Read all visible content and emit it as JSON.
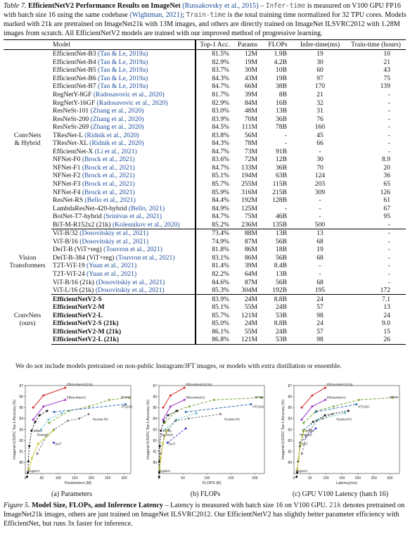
{
  "table_caption": {
    "prefix": "Table 7.",
    "title": "EfficientNetV2 Performance Results on ImageNet",
    "cite1": "(Russakovsky et al., 2015)",
    "dash": " – ",
    "mono1": "Infer-time",
    "text1": " is measured on V100 GPU FP16 with batch size 16 using the same codebase ",
    "cite2": "(Wightman, 2021)",
    "text2": "; ",
    "mono2": "Train-time",
    "text3": " is the total training time normalized for 32 TPU cores. Models marked with 21k are pretrained on ImageNet21k with 13M images, and others are directly trained on ImageNet ILSVRC2012 with 1.28M images from scratch. All EfficientNetV2 models are trained with our improved method of progressive learning."
  },
  "table": {
    "headers": [
      "Model",
      "Top-1 Acc.",
      "Params",
      "FLOPs",
      "Infer-time(ms)",
      "Train-time (hours)"
    ],
    "groups": [
      {
        "label": [
          "ConvNets",
          "& Hybrid"
        ],
        "rows": [
          {
            "model": "EfficientNet-B3",
            "cite": "(Tan & Le, 2019a)",
            "acc": "81.5%",
            "params": "12M",
            "flops": "1.9B",
            "infer": "19",
            "train": "10"
          },
          {
            "model": "EfficientNet-B4",
            "cite": "(Tan & Le, 2019a)",
            "acc": "82.9%",
            "params": "19M",
            "flops": "4.2B",
            "infer": "30",
            "train": "21"
          },
          {
            "model": "EfficientNet-B5",
            "cite": "(Tan & Le, 2019a)",
            "acc": "83.7%",
            "params": "30M",
            "flops": "10B",
            "infer": "60",
            "train": "43"
          },
          {
            "model": "EfficientNet-B6",
            "cite": "(Tan & Le, 2019a)",
            "acc": "84.3%",
            "params": "43M",
            "flops": "19B",
            "infer": "97",
            "train": "75"
          },
          {
            "model": "EfficientNet-B7",
            "cite": "(Tan & Le, 2019a)",
            "acc": "84.7%",
            "params": "66M",
            "flops": "38B",
            "infer": "170",
            "train": "139"
          },
          {
            "model": "RegNetY-8GF",
            "cite": "(Radosavovic et al., 2020)",
            "acc": "81.7%",
            "params": "39M",
            "flops": "8B",
            "infer": "21",
            "train": "-"
          },
          {
            "model": "RegNetY-16GF",
            "cite": "(Radosavovic et al., 2020)",
            "acc": "82.9%",
            "params": "84M",
            "flops": "16B",
            "infer": "32",
            "train": "-"
          },
          {
            "model": "ResNeSt-101",
            "cite": "(Zhang et al., 2020)",
            "acc": "83.0%",
            "params": "48M",
            "flops": "13B",
            "infer": "31",
            "train": "-"
          },
          {
            "model": "ResNeSt-200",
            "cite": "(Zhang et al., 2020)",
            "acc": "83.9%",
            "params": "70M",
            "flops": "36B",
            "infer": "76",
            "train": "-"
          },
          {
            "model": "ResNeSt-269",
            "cite": "(Zhang et al., 2020)",
            "acc": "84.5%",
            "params": "111M",
            "flops": "78B",
            "infer": "160",
            "train": "-"
          },
          {
            "model": "TResNet-L",
            "cite": "(Ridnik et al., 2020)",
            "acc": "83.8%",
            "params": "56M",
            "flops": "-",
            "infer": "45",
            "train": "-"
          },
          {
            "model": "TResNet-XL",
            "cite": "(Ridnik et al., 2020)",
            "acc": "84.3%",
            "params": "78M",
            "flops": "-",
            "infer": "66",
            "train": "-"
          },
          {
            "model": "EfficientNet-X",
            "cite": "(Li et al., 2021)",
            "acc": "84.7%",
            "params": "73M",
            "flops": "91B",
            "infer": "-",
            "train": "-"
          },
          {
            "model": "NFNet-F0",
            "cite": "(Brock et al., 2021)",
            "acc": "83.6%",
            "params": "72M",
            "flops": "12B",
            "infer": "30",
            "train": "8.9"
          },
          {
            "model": "NFNet-F1",
            "cite": "(Brock et al., 2021)",
            "acc": "84.7%",
            "params": "133M",
            "flops": "36B",
            "infer": "70",
            "train": "20"
          },
          {
            "model": "NFNet-F2",
            "cite": "(Brock et al., 2021)",
            "acc": "85.1%",
            "params": "194M",
            "flops": "63B",
            "infer": "124",
            "train": "36"
          },
          {
            "model": "NFNet-F3",
            "cite": "(Brock et al., 2021)",
            "acc": "85.7%",
            "params": "255M",
            "flops": "115B",
            "infer": "203",
            "train": "65"
          },
          {
            "model": "NFNet-F4",
            "cite": "(Brock et al., 2021)",
            "acc": "85.9%",
            "params": "316M",
            "flops": "215B",
            "infer": "309",
            "train": "126"
          },
          {
            "model": "ResNet-RS",
            "cite": "(Bello et al., 2021)",
            "acc": "84.4%",
            "params": "192M",
            "flops": "128B",
            "infer": "-",
            "train": "61"
          },
          {
            "model": "LambdaResNet-420-hybrid",
            "cite": "(Bello, 2021)",
            "acc": "84.9%",
            "params": "125M",
            "flops": "-",
            "infer": "-",
            "train": "67"
          },
          {
            "model": "BotNet-T7-hybrid",
            "cite": "(Srinivas et al., 2021)",
            "acc": "84.7%",
            "params": "75M",
            "flops": "46B",
            "infer": "-",
            "train": "95"
          },
          {
            "model": "BiT-M-R152x2 (21k)",
            "cite": "(Kolesnikov et al., 2020)",
            "acc": "85.2%",
            "params": "236M",
            "flops": "135B",
            "infer": "500",
            "train": "-"
          }
        ]
      },
      {
        "label": [
          "Vision",
          "Transformers"
        ],
        "rows": [
          {
            "model": "ViT-B/32",
            "cite": "(Dosovitskiy et al., 2021)",
            "acc": "73.4%",
            "params": "88M",
            "flops": "13B",
            "infer": "13",
            "train": "-"
          },
          {
            "model": "ViT-B/16",
            "cite": "(Dosovitskiy et al., 2021)",
            "acc": "74.9%",
            "params": "87M",
            "flops": "56B",
            "infer": "68",
            "train": "-"
          },
          {
            "model": "DeiT-B (ViT+reg)",
            "cite": "(Touvron et al., 2021)",
            "acc": "81.8%",
            "params": "86M",
            "flops": "18B",
            "infer": "19",
            "train": "-"
          },
          {
            "model": "DeiT-B-384 (ViT+reg)",
            "cite": "(Touvron et al., 2021)",
            "acc": "83.1%",
            "params": "86M",
            "flops": "56B",
            "infer": "68",
            "train": "-"
          },
          {
            "model": "T2T-ViT-19",
            "cite": "(Yuan et al., 2021)",
            "acc": "81.4%",
            "params": "39M",
            "flops": "8.4B",
            "infer": "-",
            "train": "-"
          },
          {
            "model": "T2T-ViT-24",
            "cite": "(Yuan et al., 2021)",
            "acc": "82.2%",
            "params": "64M",
            "flops": "13B",
            "infer": "-",
            "train": "-"
          },
          {
            "model": "ViT-B/16 (21k)",
            "cite": "(Dosovitskiy et al., 2021)",
            "acc": "84.6%",
            "params": "87M",
            "flops": "56B",
            "infer": "68",
            "train": "-"
          },
          {
            "model": "ViT-L/16 (21k)",
            "cite": "(Dosovitskiy et al., 2021)",
            "acc": "85.3%",
            "params": "304M",
            "flops": "192B",
            "infer": "195",
            "train": "172"
          }
        ]
      },
      {
        "label": [
          "ConvNets",
          "(ours)"
        ],
        "rows": [
          {
            "model": "EfficientNetV2-S",
            "cite": "",
            "acc": "83.9%",
            "params": "24M",
            "flops": "8.8B",
            "infer": "24",
            "train": "7.1"
          },
          {
            "model": "EfficientNetV2-M",
            "cite": "",
            "acc": "85.1%",
            "params": "55M",
            "flops": "24B",
            "infer": "57",
            "train": "13"
          },
          {
            "model": "EfficientNetV2-L",
            "cite": "",
            "acc": "85.7%",
            "params": "121M",
            "flops": "53B",
            "infer": "98",
            "train": "24"
          },
          {
            "model": "EfficientNetV2-S (21k)",
            "cite": "",
            "acc": "85.0%",
            "params": "24M",
            "flops": "8.8B",
            "infer": "24",
            "train": "9.0"
          },
          {
            "model": "EfficientNetV2-M (21k)",
            "cite": "",
            "acc": "86.1%",
            "params": "55M",
            "flops": "24B",
            "infer": "57",
            "train": "15"
          },
          {
            "model": "EfficientNetV2-L (21k)",
            "cite": "",
            "acc": "86.8%",
            "params": "121M",
            "flops": "53B",
            "infer": "98",
            "train": "26"
          }
        ]
      }
    ],
    "footnote": "We do not include models pretrained on non-public Instagram/JFT images, or models with extra distillation or ensemble."
  },
  "colors": {
    "EfficientNetV2 (21k)": "#d62728",
    "EfficientNetV2": "#9b30c8",
    "NFNet": "#7aab3c",
    "ViT (21k)": "#2f6fb5",
    "EffNet": "#111111",
    "ResNeSt": "#57b7c9",
    "ResNet-RS": "#777777",
    "DeiT": "#3a3ad0",
    "RegNetY": "#c8c83a"
  },
  "chart_data": [
    {
      "type": "line",
      "subcaption": "(a) Parameters",
      "xlabel": "Parameters (M)",
      "ylabel": "Imagenet ILSVRC Top-1 Accuracy (%)",
      "xlim": [
        0,
        320
      ],
      "ylim": [
        79,
        87
      ],
      "xticks": [
        "0",
        "50",
        "100",
        "150",
        "200",
        "250",
        "300"
      ],
      "yticks": [
        "80",
        "81",
        "82",
        "83",
        "84",
        "85",
        "86",
        "87"
      ],
      "series": [
        {
          "name": "EfficientNetV2(21k)",
          "x": [
            24,
            55,
            121
          ],
          "y": [
            85.0,
            86.1,
            86.8
          ]
        },
        {
          "name": "EfficientNetV2",
          "x": [
            24,
            55,
            121
          ],
          "y": [
            83.9,
            85.1,
            85.7
          ]
        },
        {
          "name": "NFNet",
          "x": [
            72,
            133,
            194,
            255,
            316
          ],
          "y": [
            83.6,
            84.7,
            85.1,
            85.7,
            85.9
          ]
        },
        {
          "name": "ViT(21k)",
          "x": [
            87,
            304
          ],
          "y": [
            84.6,
            85.3
          ]
        },
        {
          "name": "EffNet",
          "x": [
            5.3,
            7.8,
            9.2,
            12,
            19,
            30,
            43,
            66
          ],
          "y": [
            77.1,
            79.1,
            80.1,
            81.5,
            82.9,
            83.7,
            84.3,
            84.7
          ]
        },
        {
          "name": "ResNeSt",
          "x": [
            48,
            70,
            111
          ],
          "y": [
            83.0,
            83.9,
            84.5
          ]
        },
        {
          "name": "ResNet-RS",
          "x": [
            36,
            64,
            87,
            129,
            164,
            192
          ],
          "y": [
            80.8,
            82.4,
            83.0,
            83.8,
            84.0,
            84.4
          ]
        },
        {
          "name": "DeiT",
          "x": [
            86
          ],
          "y": [
            81.8
          ]
        },
        {
          "name": "RegNetY",
          "x": [
            11,
            20,
            39,
            84
          ],
          "y": [
            79.4,
            80.4,
            81.7,
            82.9
          ]
        }
      ]
    },
    {
      "type": "line",
      "subcaption": "(b) FLOPs",
      "xlabel": "FLOPS (B)",
      "ylabel": "Imagenet ILSVRC Top-1 Accuracy (%)",
      "xlim": [
        0,
        220
      ],
      "ylim": [
        79,
        87
      ],
      "xticks": [
        "0",
        "50",
        "100",
        "150",
        "200"
      ],
      "yticks": [
        "80",
        "81",
        "82",
        "83",
        "84",
        "85",
        "86",
        "87"
      ],
      "series": [
        {
          "name": "EfficientNetV2(21k)",
          "x": [
            8.8,
            24,
            53
          ],
          "y": [
            85.0,
            86.1,
            86.8
          ]
        },
        {
          "name": "EfficientNetV2",
          "x": [
            8.8,
            24,
            53
          ],
          "y": [
            83.9,
            85.1,
            85.7
          ]
        },
        {
          "name": "NFNet",
          "x": [
            12,
            36,
            63,
            115,
            215
          ],
          "y": [
            83.6,
            84.7,
            85.1,
            85.7,
            85.9
          ]
        },
        {
          "name": "ViT(21k)",
          "x": [
            56,
            192
          ],
          "y": [
            84.6,
            85.3
          ]
        },
        {
          "name": "EffNet",
          "x": [
            0.4,
            0.7,
            1.0,
            1.9,
            4.2,
            10,
            19,
            38
          ],
          "y": [
            77.1,
            79.1,
            80.1,
            81.5,
            82.9,
            83.7,
            84.3,
            84.7
          ]
        },
        {
          "name": "ResNeSt",
          "x": [
            13,
            36,
            78
          ],
          "y": [
            83.0,
            83.9,
            84.5
          ]
        },
        {
          "name": "ResNet-RS",
          "x": [
            4.3,
            11,
            20,
            35,
            62,
            128
          ],
          "y": [
            80.8,
            82.4,
            83.0,
            83.8,
            84.0,
            84.4
          ]
        },
        {
          "name": "DeiT",
          "x": [
            18,
            56
          ],
          "y": [
            81.8,
            83.1
          ]
        },
        {
          "name": "RegNetY",
          "x": [
            1.6,
            4,
            8,
            16
          ],
          "y": [
            79.4,
            80.4,
            81.7,
            82.9
          ]
        }
      ]
    },
    {
      "type": "line",
      "subcaption": "(c) GPU V100 Latency (batch 16)",
      "xlabel": "Latency(ms)",
      "ylabel": "Imagenet ILSVRC Top-1 Accuracy (%)",
      "xlim": [
        0,
        330
      ],
      "ylim": [
        79,
        87
      ],
      "xticks": [
        "0",
        "50",
        "100",
        "150",
        "200",
        "250",
        "300"
      ],
      "yticks": [
        "80",
        "81",
        "82",
        "83",
        "84",
        "85",
        "86",
        "87"
      ],
      "series": [
        {
          "name": "EfficientNetV2(21k)",
          "x": [
            24,
            57,
            98
          ],
          "y": [
            85.0,
            86.1,
            86.8
          ]
        },
        {
          "name": "EfficientNetV2",
          "x": [
            24,
            57,
            98
          ],
          "y": [
            83.9,
            85.1,
            85.7
          ]
        },
        {
          "name": "NFNet",
          "x": [
            30,
            70,
            124,
            203,
            309
          ],
          "y": [
            83.6,
            84.7,
            85.1,
            85.7,
            85.9
          ]
        },
        {
          "name": "ViT(21k)",
          "x": [
            68,
            195
          ],
          "y": [
            84.6,
            85.3
          ]
        },
        {
          "name": "EffNet",
          "x": [
            8,
            10,
            13,
            19,
            30,
            60,
            97,
            170
          ],
          "y": [
            77.1,
            79.1,
            80.1,
            81.5,
            82.9,
            83.7,
            84.3,
            84.7
          ]
        },
        {
          "name": "ResNeSt",
          "x": [
            31,
            76,
            160
          ],
          "y": [
            83.0,
            83.9,
            84.5
          ]
        },
        {
          "name": "ResNet-RS",
          "x": [
            25,
            38,
            52,
            72,
            90,
            120
          ],
          "y": [
            80.8,
            82.4,
            83.0,
            83.8,
            84.0,
            84.4
          ]
        },
        {
          "name": "DeiT",
          "x": [
            19,
            68
          ],
          "y": [
            81.8,
            83.1
          ]
        },
        {
          "name": "RegNetY",
          "x": [
            10,
            15,
            21,
            32
          ],
          "y": [
            79.4,
            80.4,
            81.7,
            82.9
          ]
        }
      ]
    }
  ],
  "figure_caption": {
    "prefix": "Figure 5.",
    "title": "Model Size, FLOPs, and Inference Latency",
    "text1": " – Latency is measured with batch size 16 on V100 GPU. ",
    "mono": "21k",
    "text2": " denotes pretrained on ImageNet21k images, others are just trained on ImageNet ILSVRC2012. Our EfficientNetV2 has slightly better parameter efficiency with EfficientNet, but runs 3x faster for inference."
  }
}
